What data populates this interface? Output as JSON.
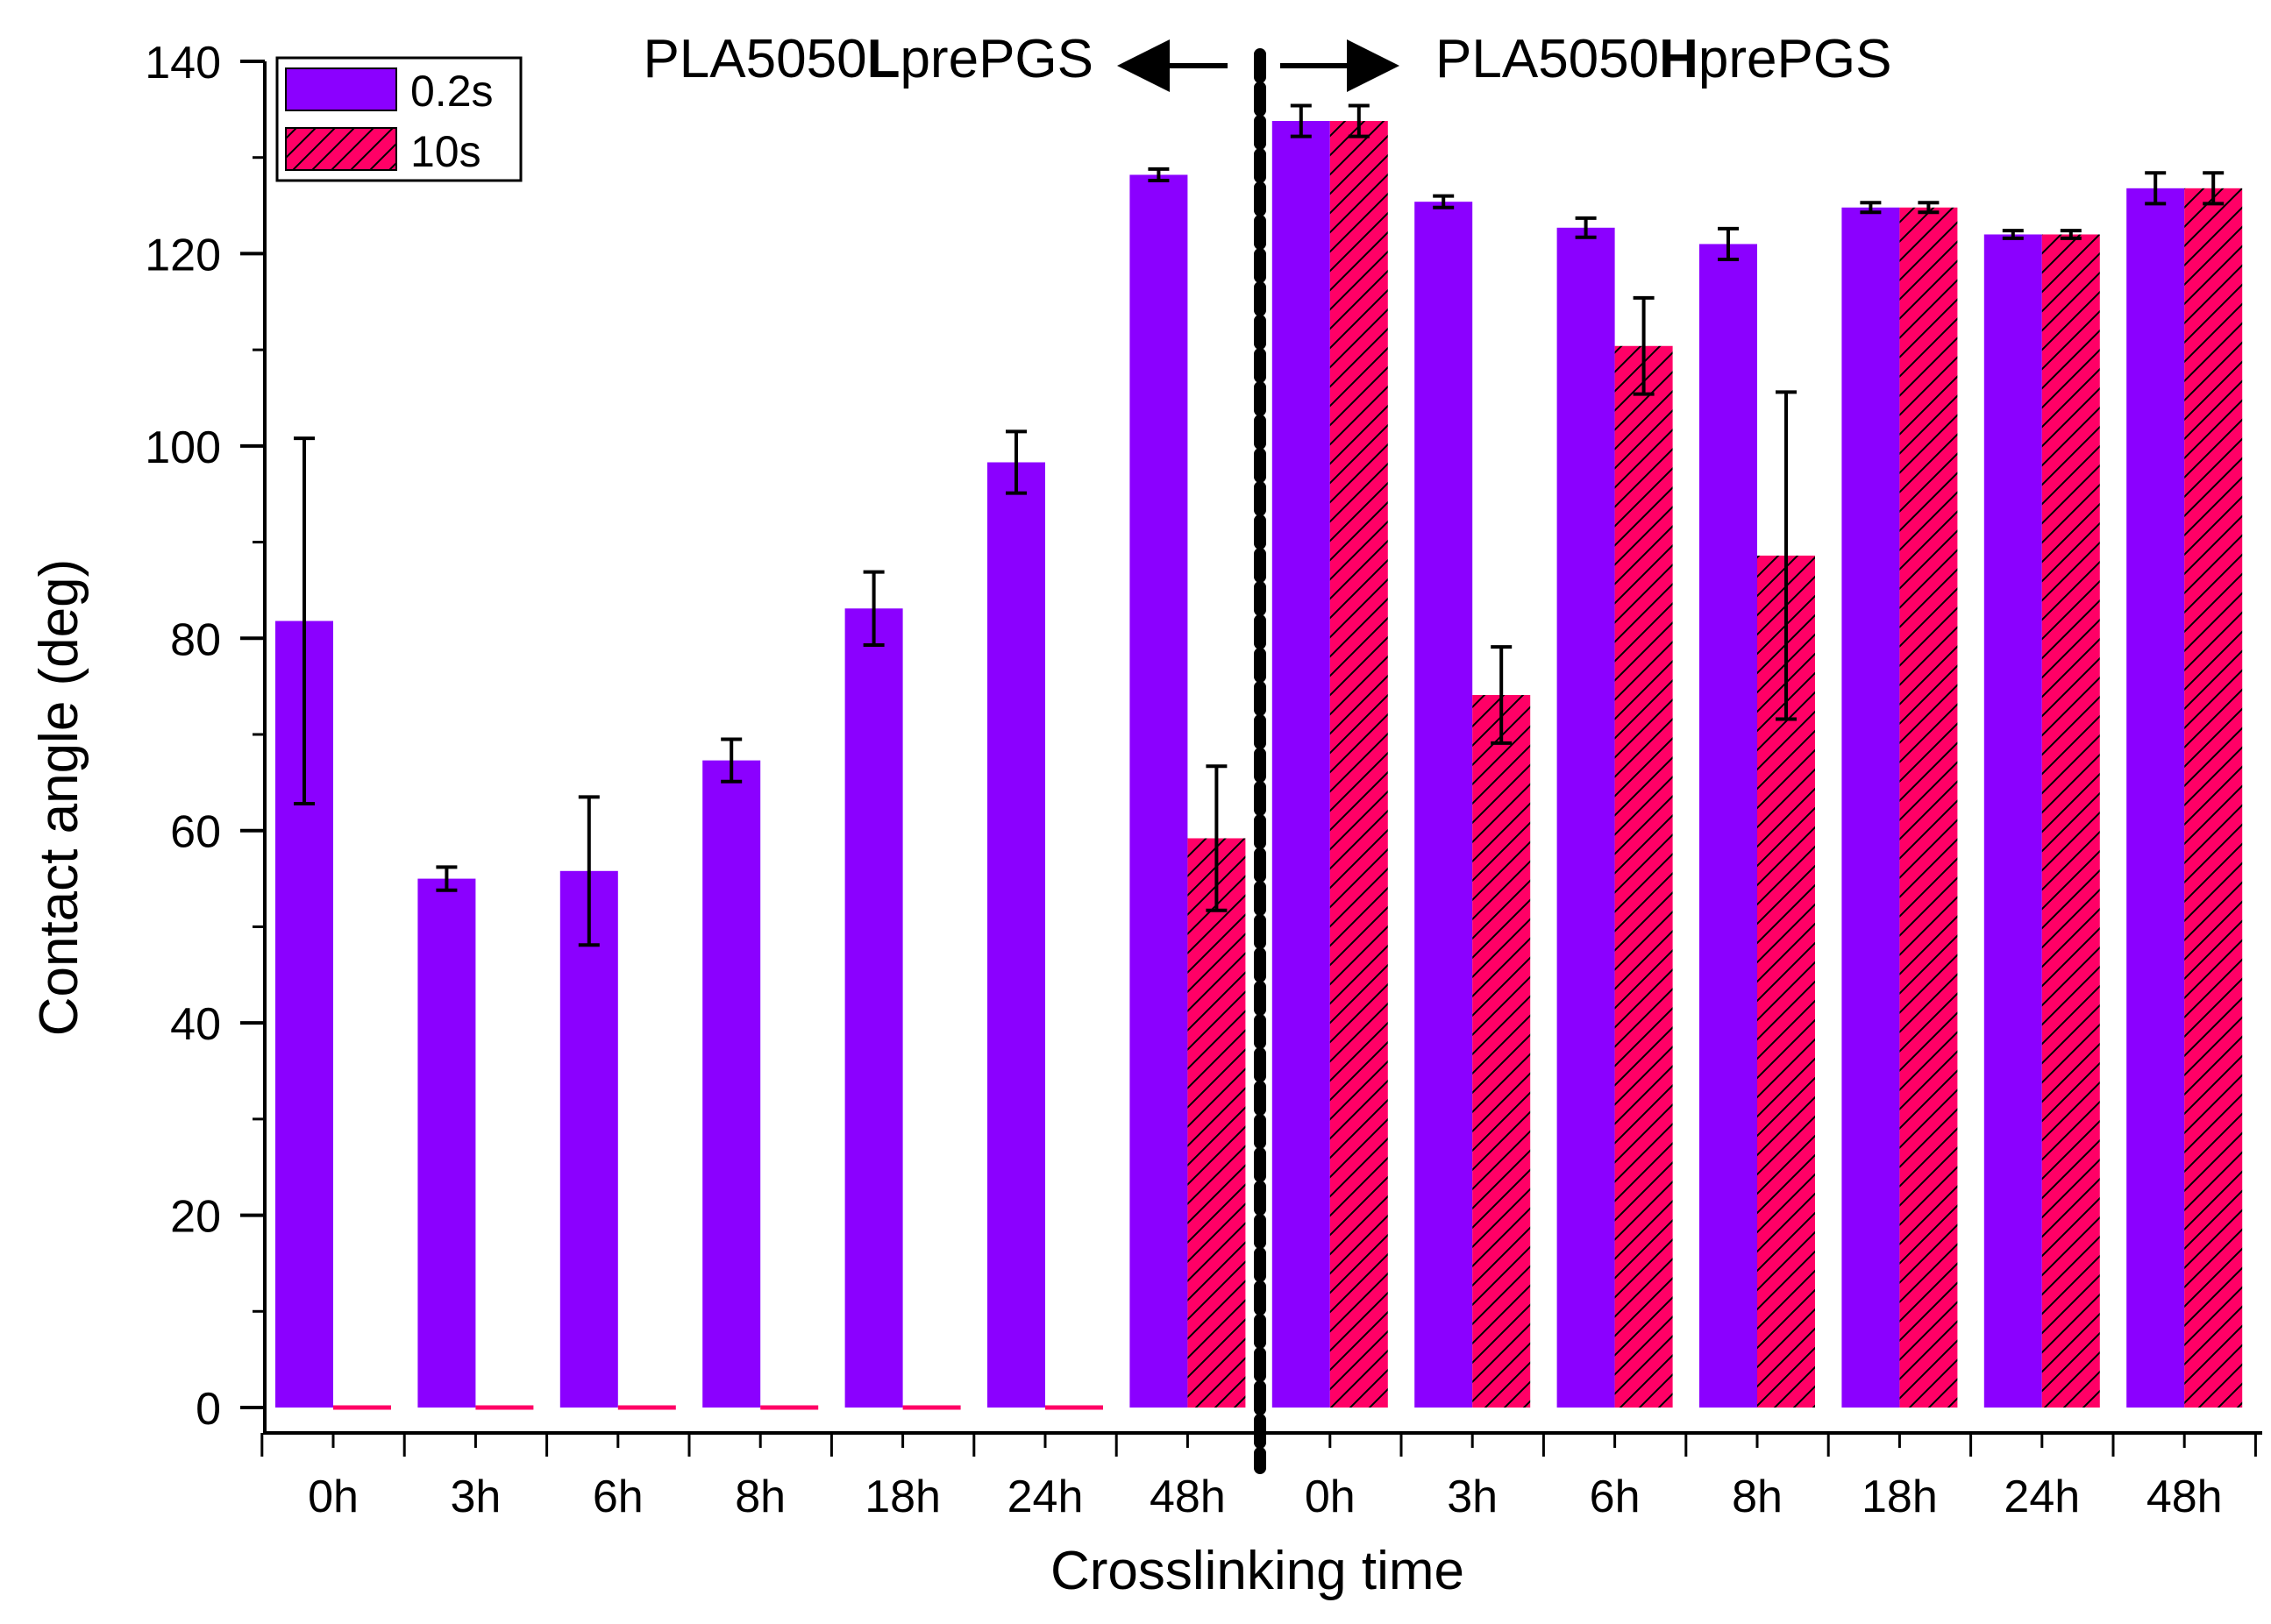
{
  "chart_data": {
    "type": "bar",
    "title": "",
    "xlabel": "Crosslinking time",
    "ylabel": "Contact angle (deg)",
    "ylim": [
      0,
      140
    ],
    "y_ticks": [
      0,
      20,
      40,
      60,
      80,
      100,
      120,
      140
    ],
    "grid": false,
    "legend_position": "top-left",
    "categories": [
      "0h",
      "3h",
      "6h",
      "8h",
      "18h",
      "24h",
      "48h",
      "0h",
      "3h",
      "6h",
      "8h",
      "18h",
      "24h",
      "48h"
    ],
    "series": [
      {
        "name": "0.2s",
        "color": "#8B00FF",
        "pattern": "solid",
        "values": [
          81.8,
          55.0,
          55.8,
          67.3,
          83.1,
          98.3,
          128.2,
          133.8,
          125.4,
          122.7,
          121.0,
          124.8,
          122.0,
          126.8
        ],
        "errors": [
          19.0,
          1.2,
          7.7,
          2.2,
          3.8,
          3.2,
          0.6,
          1.6,
          0.6,
          1.0,
          1.6,
          0.5,
          0.4,
          1.6
        ]
      },
      {
        "name": "10s",
        "color": "#FF0066",
        "pattern": "hatched",
        "values": [
          0,
          0,
          0,
          0,
          0,
          0,
          59.2,
          133.8,
          74.1,
          110.4,
          88.6,
          124.8,
          122.0,
          126.8
        ],
        "errors": [
          null,
          null,
          null,
          null,
          null,
          null,
          7.5,
          1.6,
          5.0,
          5.0,
          17.0,
          0.5,
          0.4,
          1.6
        ]
      }
    ],
    "group_labels": {
      "left": {
        "plain_before": "PLA5050",
        "bold": "L",
        "plain_after": "prePGS"
      },
      "right": {
        "plain_before": "PLA5050",
        "bold": "H",
        "plain_after": "prePGS"
      }
    }
  }
}
